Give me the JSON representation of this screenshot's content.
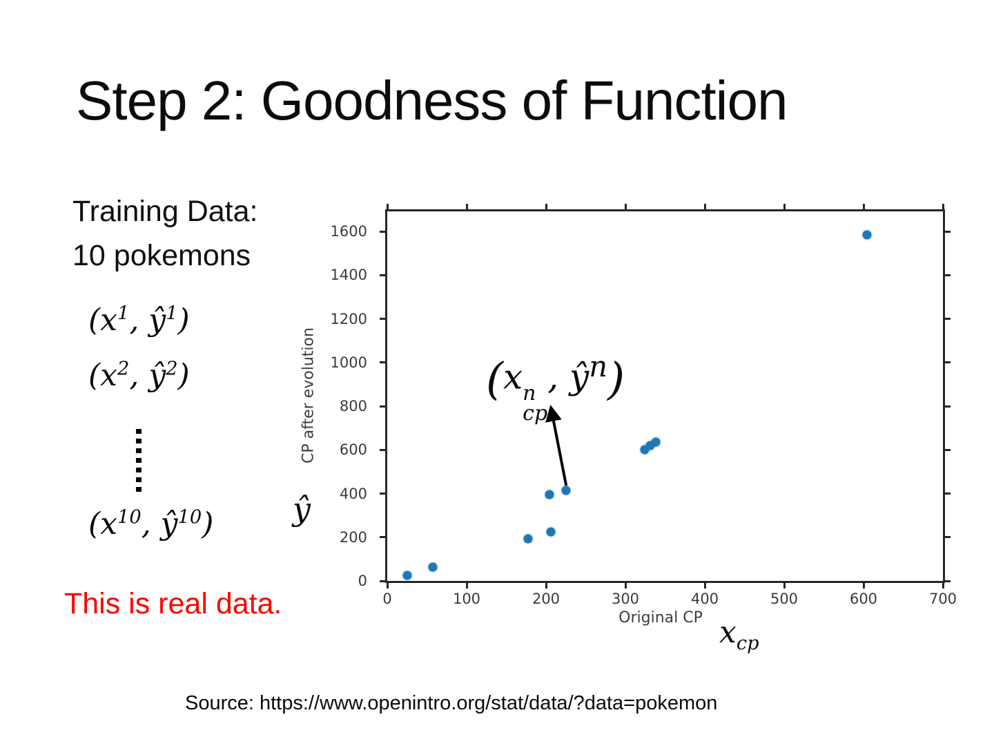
{
  "slide": {
    "title": "Step 2: Goodness of Function",
    "training_line1": "Training Data:",
    "training_line2": "10 pokemons",
    "pair1": "(x^{1}, ŷ^{1})",
    "pair2": "(x^{2}, ŷ^{2})",
    "pair3": "(x^{10}, ŷ^{10})",
    "emphasis": "This is real data.",
    "source": "Source: https://www.openintro.org/stat/data/?data=pokemon",
    "y_axis_symbol": "ŷ",
    "x_axis_symbol": "x_{cp}",
    "annotation": "(x^{n}_{cp}, ŷ^{n})"
  },
  "chart_data": {
    "type": "scatter",
    "title": "",
    "xlabel": "Original CP",
    "ylabel": "CP after evolution",
    "xlim": [
      0,
      700
    ],
    "ylim": [
      0,
      1692
    ],
    "x_ticks": [
      0,
      100,
      200,
      300,
      400,
      500,
      600,
      700
    ],
    "y_ticks": [
      0,
      200,
      400,
      600,
      800,
      1000,
      1200,
      1400,
      1600
    ],
    "grid": false,
    "legend": "none",
    "point_color": "#1f77b4",
    "axis_color": "#262626",
    "points": [
      {
        "x": 25,
        "y": 25
      },
      {
        "x": 57,
        "y": 63
      },
      {
        "x": 177,
        "y": 193
      },
      {
        "x": 204,
        "y": 395
      },
      {
        "x": 206,
        "y": 224
      },
      {
        "x": 225,
        "y": 414
      },
      {
        "x": 324,
        "y": 601
      },
      {
        "x": 331,
        "y": 620
      },
      {
        "x": 338,
        "y": 636
      },
      {
        "x": 604,
        "y": 1584
      }
    ],
    "annotated_point": {
      "x": 225,
      "y": 414
    },
    "annotation_text": "(x^{n}_{cp}, ŷ^{n})"
  }
}
